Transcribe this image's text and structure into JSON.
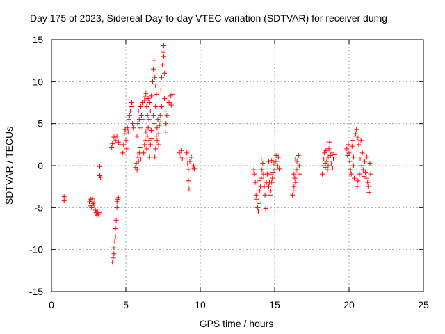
{
  "chart_data": {
    "type": "scatter",
    "title": "Day 175 of 2023, Sidereal Day-to-day VTEC variation (SDTVAR) for receiver dumg",
    "xlabel": "GPS time / hours",
    "ylabel": "SDTVAR / TECUs",
    "xlim": [
      0,
      25
    ],
    "ylim": [
      -15,
      15
    ],
    "xticks": [
      0,
      5,
      10,
      15,
      20,
      25
    ],
    "yticks": [
      -15,
      -10,
      -5,
      0,
      5,
      10,
      15
    ],
    "xtick_labels": [
      "0",
      "5",
      "10",
      "15",
      "20",
      "25"
    ],
    "ytick_labels": [
      "-15",
      "-10",
      "-5",
      "0",
      "5",
      "10",
      "15"
    ],
    "grid": true,
    "legend": "none",
    "marker": "+",
    "color": "#ff0000",
    "points": [
      [
        0.85,
        -3.7
      ],
      [
        0.85,
        -4.2
      ],
      [
        2.55,
        -4.3
      ],
      [
        2.6,
        -4.8
      ],
      [
        2.65,
        -4.0
      ],
      [
        2.7,
        -5.0
      ],
      [
        2.75,
        -3.9
      ],
      [
        2.8,
        -4.5
      ],
      [
        2.85,
        -4.7
      ],
      [
        2.9,
        -4.1
      ],
      [
        2.95,
        -5.3
      ],
      [
        3.0,
        -5.6
      ],
      [
        3.05,
        -5.9
      ],
      [
        3.1,
        -5.5
      ],
      [
        3.15,
        -5.8
      ],
      [
        3.2,
        -5.6
      ],
      [
        3.25,
        -0.1
      ],
      [
        3.25,
        -1.2
      ],
      [
        3.3,
        -1.4
      ],
      [
        4.1,
        -11.5
      ],
      [
        4.15,
        -11.0
      ],
      [
        4.2,
        -10.5
      ],
      [
        4.2,
        -9.8
      ],
      [
        4.25,
        -9.0
      ],
      [
        4.3,
        -8.5
      ],
      [
        4.3,
        -7.5
      ],
      [
        4.35,
        -6.5
      ],
      [
        4.4,
        -5.0
      ],
      [
        4.4,
        -4.3
      ],
      [
        4.45,
        -4.0
      ],
      [
        4.5,
        -3.8
      ],
      [
        4.05,
        2.2
      ],
      [
        4.1,
        2.6
      ],
      [
        4.2,
        3.4
      ],
      [
        4.3,
        3.0
      ],
      [
        4.4,
        3.5
      ],
      [
        4.5,
        2.8
      ],
      [
        4.6,
        2.5
      ],
      [
        4.8,
        1.5
      ],
      [
        4.85,
        2.5
      ],
      [
        4.9,
        3.8
      ],
      [
        4.95,
        4.3
      ],
      [
        5.0,
        3.0
      ],
      [
        5.05,
        2.0
      ],
      [
        5.1,
        4.5
      ],
      [
        5.15,
        4.0
      ],
      [
        5.2,
        5.5
      ],
      [
        5.25,
        6.0
      ],
      [
        5.3,
        6.5
      ],
      [
        5.35,
        7.0
      ],
      [
        5.4,
        7.5
      ],
      [
        5.45,
        5.0
      ],
      [
        5.5,
        4.5
      ],
      [
        5.65,
        -0.2
      ],
      [
        5.7,
        0.3
      ],
      [
        5.75,
        -0.5
      ],
      [
        5.8,
        1.0
      ],
      [
        5.85,
        0.5
      ],
      [
        5.9,
        1.5
      ],
      [
        5.95,
        2.2
      ],
      [
        6.0,
        0.8
      ],
      [
        5.75,
        3.5
      ],
      [
        5.8,
        5.0
      ],
      [
        5.85,
        6.5
      ],
      [
        5.9,
        5.5
      ],
      [
        5.95,
        4.5
      ],
      [
        6.0,
        7.0
      ],
      [
        6.05,
        6.0
      ],
      [
        6.1,
        7.5
      ],
      [
        6.15,
        5.5
      ],
      [
        6.25,
        7.8
      ],
      [
        6.3,
        8.2
      ],
      [
        6.35,
        8.6
      ],
      [
        6.4,
        7.0
      ],
      [
        6.45,
        6.0
      ],
      [
        6.5,
        8.0
      ],
      [
        6.55,
        5.5
      ],
      [
        6.6,
        7.5
      ],
      [
        6.65,
        6.5
      ],
      [
        6.7,
        8.3
      ],
      [
        6.2,
        1.5
      ],
      [
        6.25,
        2.5
      ],
      [
        6.3,
        3.0
      ],
      [
        6.35,
        4.0
      ],
      [
        6.4,
        2.0
      ],
      [
        6.45,
        3.5
      ],
      [
        6.5,
        4.5
      ],
      [
        6.55,
        3.0
      ],
      [
        6.6,
        1.0
      ],
      [
        6.65,
        2.5
      ],
      [
        6.7,
        4.2
      ],
      [
        6.75,
        3.2
      ],
      [
        6.8,
        10.0
      ],
      [
        6.85,
        11.5
      ],
      [
        6.9,
        12.5
      ],
      [
        6.95,
        10.5
      ],
      [
        7.0,
        9.5
      ],
      [
        7.05,
        8.5
      ],
      [
        7.0,
        7.0
      ],
      [
        6.85,
        6.0
      ],
      [
        6.9,
        5.0
      ],
      [
        6.95,
        1.0
      ],
      [
        7.0,
        2.0
      ],
      [
        7.05,
        3.5
      ],
      [
        7.1,
        4.5
      ],
      [
        7.15,
        5.5
      ],
      [
        7.2,
        3.8
      ],
      [
        7.25,
        4.8
      ],
      [
        7.3,
        6.0
      ],
      [
        7.35,
        5.2
      ],
      [
        7.4,
        7.0
      ],
      [
        7.1,
        3.0
      ],
      [
        7.2,
        2.5
      ],
      [
        7.35,
        9.0
      ],
      [
        7.4,
        10.5
      ],
      [
        7.45,
        12.0
      ],
      [
        7.5,
        13.5
      ],
      [
        7.55,
        14.3
      ],
      [
        7.55,
        13.0
      ],
      [
        7.6,
        11.0
      ],
      [
        7.5,
        9.5
      ],
      [
        7.6,
        8.0
      ],
      [
        7.65,
        6.5
      ],
      [
        7.7,
        5.0
      ],
      [
        7.65,
        4.0
      ],
      [
        7.75,
        6.0
      ],
      [
        7.9,
        7.5
      ],
      [
        8.0,
        8.3
      ],
      [
        8.05,
        7.2
      ],
      [
        8.1,
        8.5
      ],
      [
        8.6,
        1.5
      ],
      [
        8.7,
        1.0
      ],
      [
        8.75,
        1.8
      ],
      [
        8.8,
        0.8
      ],
      [
        9.05,
        0.8
      ],
      [
        9.1,
        1.5
      ],
      [
        9.15,
        0.2
      ],
      [
        9.2,
        -0.5
      ],
      [
        9.2,
        -1.8
      ],
      [
        9.25,
        -2.8
      ],
      [
        9.3,
        0.5
      ],
      [
        9.4,
        1.0
      ],
      [
        9.5,
        -0.3
      ],
      [
        9.55,
        0.0
      ],
      [
        9.6,
        -0.4
      ],
      [
        13.6,
        -0.5
      ],
      [
        13.65,
        -1.0
      ],
      [
        13.7,
        -2.0
      ],
      [
        13.75,
        -3.5
      ],
      [
        13.8,
        -4.0
      ],
      [
        13.85,
        -5.0
      ],
      [
        13.9,
        -5.5
      ],
      [
        13.95,
        -4.5
      ],
      [
        14.0,
        -3.0
      ],
      [
        14.05,
        -2.5
      ],
      [
        14.1,
        -1.5
      ],
      [
        14.15,
        -0.5
      ],
      [
        14.2,
        0.3
      ],
      [
        14.25,
        -1.0
      ],
      [
        14.3,
        -2.5
      ],
      [
        14.35,
        -3.5
      ],
      [
        14.4,
        -5.1
      ],
      [
        14.45,
        -2.0
      ],
      [
        14.5,
        -1.0
      ],
      [
        14.55,
        -0.3
      ],
      [
        14.6,
        0.5
      ],
      [
        14.1,
        0.8
      ],
      [
        13.95,
        -1.8
      ],
      [
        14.6,
        -2.5
      ],
      [
        14.65,
        -2.0
      ],
      [
        14.7,
        -3.5
      ],
      [
        14.75,
        -3.0
      ],
      [
        14.8,
        -2.0
      ],
      [
        14.85,
        -1.5
      ],
      [
        14.9,
        -0.8
      ],
      [
        14.95,
        0.2
      ],
      [
        15.0,
        -0.5
      ],
      [
        15.05,
        0.5
      ],
      [
        15.1,
        1.2
      ],
      [
        15.15,
        0.5
      ],
      [
        15.2,
        0.0
      ],
      [
        15.25,
        1.0
      ],
      [
        15.3,
        -0.4
      ],
      [
        15.35,
        0.8
      ],
      [
        14.7,
        -1.0
      ],
      [
        14.8,
        0.6
      ],
      [
        16.2,
        -3.5
      ],
      [
        16.25,
        -3.0
      ],
      [
        16.3,
        -2.5
      ],
      [
        16.35,
        -1.5
      ],
      [
        16.4,
        -2.0
      ],
      [
        16.45,
        -0.5
      ],
      [
        16.5,
        0.5
      ],
      [
        16.55,
        -0.5
      ],
      [
        16.6,
        1.2
      ],
      [
        16.65,
        0.0
      ],
      [
        16.7,
        -1.0
      ],
      [
        16.3,
        -1.0
      ],
      [
        16.4,
        0.8
      ],
      [
        18.2,
        -1.0
      ],
      [
        18.25,
        0.0
      ],
      [
        18.3,
        0.8
      ],
      [
        18.35,
        1.5
      ],
      [
        18.4,
        0.3
      ],
      [
        18.45,
        1.8
      ],
      [
        18.5,
        0.5
      ],
      [
        18.55,
        -0.5
      ],
      [
        18.6,
        1.0
      ],
      [
        18.65,
        2.0
      ],
      [
        18.7,
        2.8
      ],
      [
        18.75,
        1.2
      ],
      [
        18.8,
        0.2
      ],
      [
        18.85,
        1.5
      ],
      [
        18.9,
        -0.3
      ],
      [
        18.95,
        0.8
      ],
      [
        19.0,
        1.3
      ],
      [
        18.4,
        -0.2
      ],
      [
        18.6,
        0.0
      ],
      [
        19.85,
        2.0
      ],
      [
        19.9,
        1.2
      ],
      [
        19.95,
        2.5
      ],
      [
        20.0,
        1.5
      ],
      [
        20.05,
        0.5
      ],
      [
        20.1,
        -0.5
      ],
      [
        20.15,
        -1.0
      ],
      [
        20.2,
        2.3
      ],
      [
        20.25,
        3.0
      ],
      [
        20.3,
        1.0
      ],
      [
        20.35,
        -1.5
      ],
      [
        20.4,
        3.5
      ],
      [
        20.45,
        3.8
      ],
      [
        20.5,
        4.3
      ],
      [
        20.55,
        -2.5
      ],
      [
        20.6,
        3.3
      ],
      [
        20.65,
        2.5
      ],
      [
        20.7,
        -1.0
      ],
      [
        20.75,
        0.8
      ],
      [
        20.8,
        3.0
      ],
      [
        20.85,
        0.0
      ],
      [
        20.9,
        1.5
      ],
      [
        20.95,
        -0.5
      ],
      [
        21.0,
        -1.3
      ],
      [
        21.05,
        0.5
      ],
      [
        21.1,
        -0.8
      ],
      [
        21.15,
        -1.5
      ],
      [
        21.2,
        1.0
      ],
      [
        21.25,
        -2.0
      ],
      [
        21.3,
        -2.5
      ],
      [
        21.35,
        -3.2
      ],
      [
        21.4,
        0.3
      ],
      [
        21.45,
        -1.0
      ],
      [
        20.3,
        0.0
      ],
      [
        20.6,
        -1.8
      ]
    ]
  }
}
